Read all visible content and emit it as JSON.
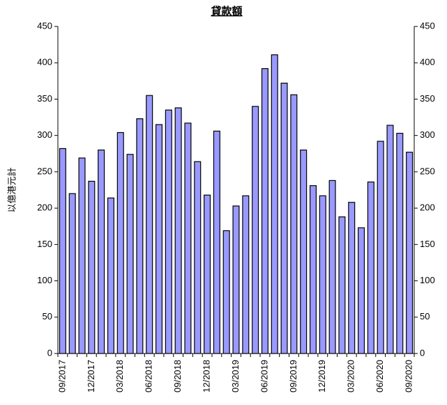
{
  "chart_data": {
    "type": "bar",
    "title": "貸款額",
    "y_label": "以億港元計",
    "categories": [
      "09/2017",
      null,
      null,
      "12/2017",
      null,
      null,
      "03/2018",
      null,
      null,
      "06/2018",
      null,
      null,
      "09/2018",
      null,
      null,
      "12/2018",
      null,
      null,
      "03/2019",
      null,
      null,
      "06/2019",
      null,
      null,
      "09/2019",
      null,
      null,
      "12/2019",
      null,
      null,
      "03/2020",
      null,
      null,
      "06/2020",
      null,
      null,
      "09/2020"
    ],
    "values": [
      282,
      220,
      269,
      237,
      280,
      214,
      304,
      274,
      323,
      355,
      315,
      335,
      338,
      317,
      264,
      218,
      306,
      169,
      203,
      217,
      340,
      392,
      411,
      372,
      356,
      280,
      231,
      217,
      238,
      188,
      208,
      173,
      236,
      292,
      314,
      303,
      277
    ],
    "color": "#9999ff",
    "ylim": [
      0,
      450
    ],
    "yticks": [
      0,
      50,
      100,
      150,
      200,
      250,
      300,
      350,
      400,
      450
    ],
    "y2lim": [
      0,
      450
    ],
    "y2ticks": [
      0,
      50,
      100,
      150,
      200,
      250,
      300,
      350,
      400,
      450
    ]
  }
}
